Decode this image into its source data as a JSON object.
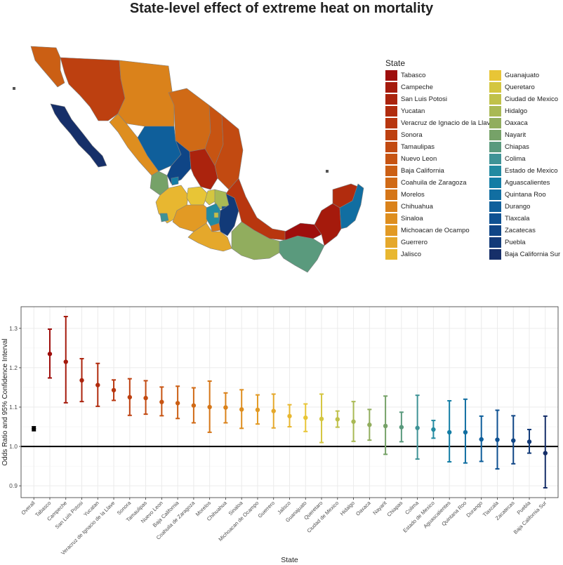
{
  "title": "State-level effect of extreme heat on mortality",
  "legend_title": "State",
  "colors": {
    "reference_line": "#000000",
    "grid": "#ebebeb",
    "panel_border": "#333333",
    "overall": "#000000",
    "map_border": "#7f7f7f"
  },
  "chart_data": [
    {
      "type": "choropleth",
      "region": "Mexico",
      "legend_title": "State",
      "legend_position": "right",
      "categories": [
        "Tabasco",
        "Campeche",
        "San Luis Potosi",
        "Yucatan",
        "Veracruz de Ignacio de la Llave",
        "Sonora",
        "Tamaulipas",
        "Nuevo Leon",
        "Baja California",
        "Coahuila de Zaragoza",
        "Morelos",
        "Chihuahua",
        "Sinaloa",
        "Michoacan de Ocampo",
        "Guerrero",
        "Jalisco",
        "Guanajuato",
        "Queretaro",
        "Ciudad de Mexico",
        "Hidalgo",
        "Oaxaca",
        "Nayarit",
        "Chiapas",
        "Colima",
        "Estado de Mexico",
        "Aguascalientes",
        "Quintana Roo",
        "Durango",
        "Tlaxcala",
        "Zacatecas",
        "Puebla",
        "Baja California Sur"
      ],
      "colors": [
        "#9e0e0c",
        "#a51a0c",
        "#ab230d",
        "#b12c0e",
        "#b8360f",
        "#bd4010",
        "#c24a11",
        "#c75412",
        "#cb5f14",
        "#d06a16",
        "#d57618",
        "#da821b",
        "#de8e1f",
        "#e29a24",
        "#e5a82b",
        "#e8b730",
        "#e8c536",
        "#d4c640",
        "#c0c14a",
        "#a9b954",
        "#91ad5e",
        "#76a268",
        "#5a9a7d",
        "#3f9396",
        "#228aa1",
        "#137da5",
        "#116ea1",
        "#0f5f9b",
        "#0e5192",
        "#0f4586",
        "#123a78",
        "#162f69"
      ]
    },
    {
      "type": "errorbar",
      "title": "",
      "xlabel": "State",
      "ylabel": "Odds Ratio and 95% Confidence Interval",
      "ylim": [
        0.87,
        1.355
      ],
      "yticks": [
        0.9,
        1.0,
        1.1,
        1.2,
        1.3
      ],
      "reference_line": 1.0,
      "grid": true,
      "categories": [
        "Overall",
        "Tabasco",
        "Campeche",
        "San Luis Potosi",
        "Yucatan",
        "Veracruz de Ignacio de la Llave",
        "Sonora",
        "Tamaulipas",
        "Nuevo Leon",
        "Baja California",
        "Coahuila de Zaragoza",
        "Morelos",
        "Chihuahua",
        "Sinaloa",
        "Michoacan de Ocampo",
        "Guerrero",
        "Jalisco",
        "Guanajuato",
        "Queretaro",
        "Ciudad de Mexico",
        "Hidalgo",
        "Oaxaca",
        "Nayarit",
        "Chiapas",
        "Colima",
        "Estado de Mexico",
        "Aguascalientes",
        "Quintana Roo",
        "Durango",
        "Tlaxcala",
        "Zacatecas",
        "Puebla",
        "Baja California Sur"
      ],
      "estimate": [
        1.045,
        1.235,
        1.215,
        1.168,
        1.156,
        1.143,
        1.125,
        1.123,
        1.113,
        1.11,
        1.104,
        1.1,
        1.099,
        1.094,
        1.093,
        1.09,
        1.077,
        1.073,
        1.07,
        1.069,
        1.063,
        1.055,
        1.052,
        1.049,
        1.047,
        1.043,
        1.036,
        1.036,
        1.018,
        1.017,
        1.015,
        1.012,
        0.983
      ],
      "lower": [
        1.04,
        1.174,
        1.111,
        1.114,
        1.102,
        1.117,
        1.079,
        1.082,
        1.078,
        1.071,
        1.06,
        1.036,
        1.06,
        1.046,
        1.057,
        1.047,
        1.05,
        1.038,
        1.01,
        1.049,
        1.013,
        1.016,
        0.98,
        1.012,
        0.968,
        1.021,
        0.961,
        0.958,
        0.962,
        0.943,
        0.956,
        0.983,
        0.895
      ],
      "upper": [
        1.05,
        1.298,
        1.33,
        1.223,
        1.211,
        1.169,
        1.172,
        1.167,
        1.151,
        1.153,
        1.149,
        1.166,
        1.136,
        1.144,
        1.131,
        1.133,
        1.106,
        1.108,
        1.133,
        1.09,
        1.114,
        1.094,
        1.128,
        1.087,
        1.13,
        1.066,
        1.116,
        1.12,
        1.077,
        1.092,
        1.078,
        1.043,
        1.077
      ]
    }
  ]
}
